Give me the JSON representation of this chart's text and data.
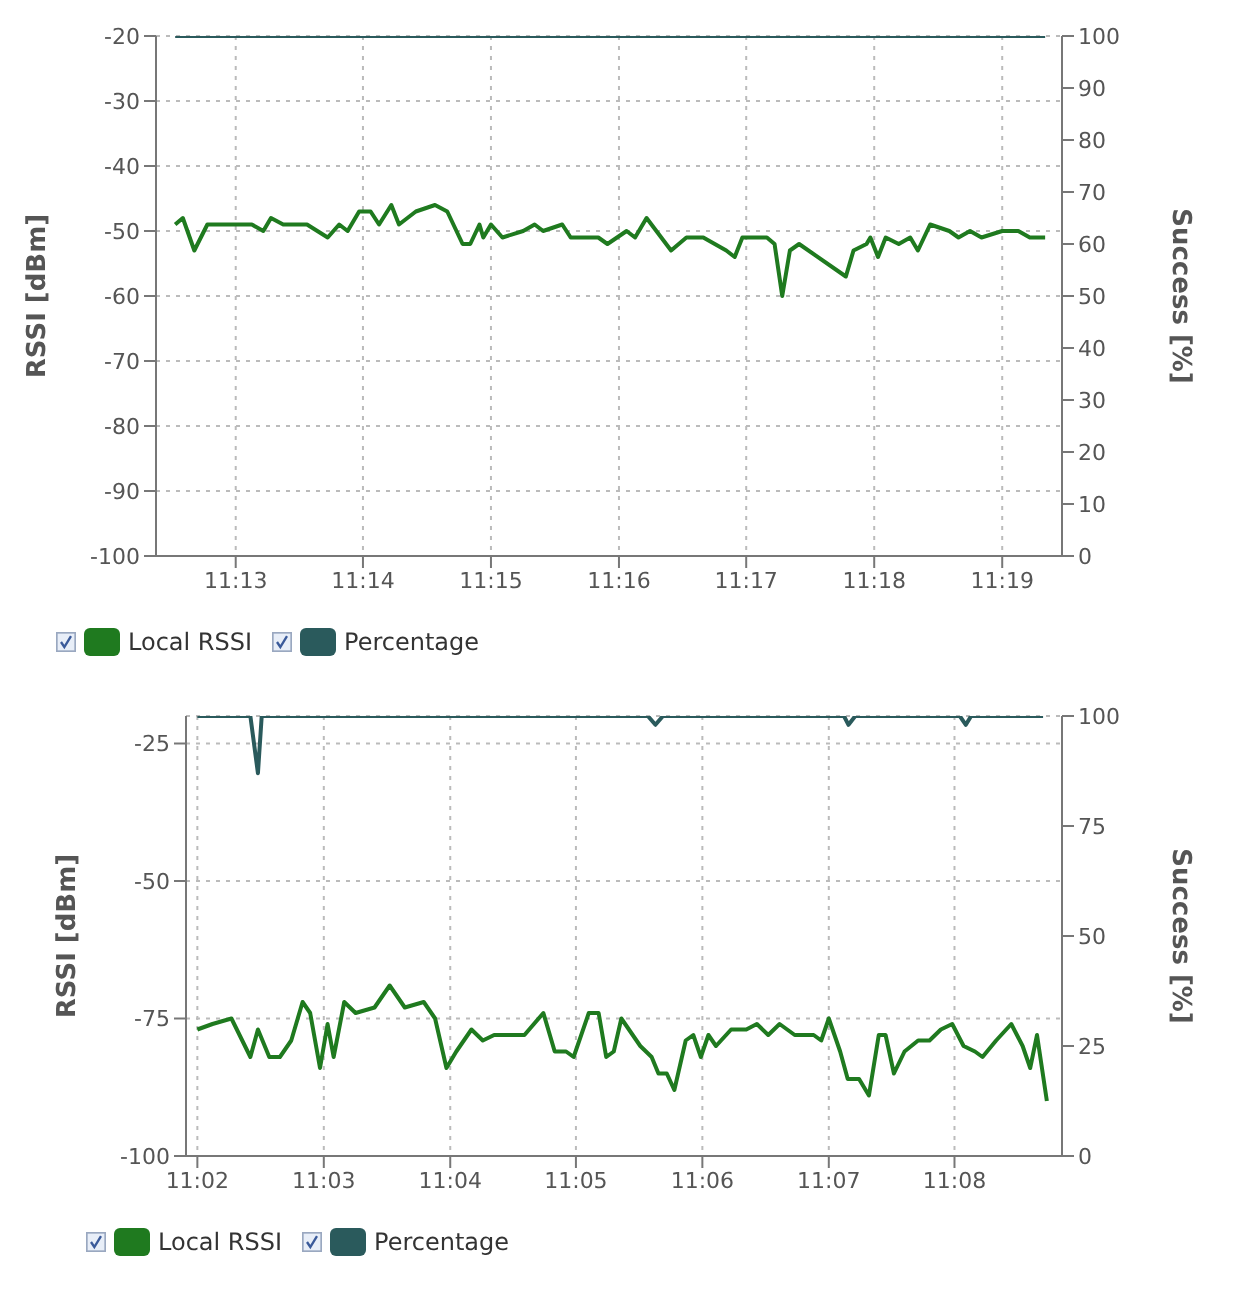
{
  "chart_data": [
    {
      "type": "line",
      "ylabel": "RSSI [dBm]",
      "y2label": "Success [%]",
      "xlim": [
        11.2063,
        11.3245
      ],
      "xticks": [
        {
          "value": 11.2167,
          "label": "11:13"
        },
        {
          "value": 11.2333,
          "label": "11:14"
        },
        {
          "value": 11.25,
          "label": "11:15"
        },
        {
          "value": 11.2667,
          "label": "11:16"
        },
        {
          "value": 11.2833,
          "label": "11:17"
        },
        {
          "value": 11.3,
          "label": "11:18"
        },
        {
          "value": 11.3167,
          "label": "11:19"
        }
      ],
      "ylim": [
        -100,
        -20
      ],
      "yticks": [
        -100,
        -90,
        -80,
        -70,
        -60,
        -50,
        -40,
        -30,
        -20
      ],
      "y2lim": [
        0,
        100
      ],
      "y2ticks": [
        0,
        10,
        20,
        30,
        40,
        50,
        60,
        70,
        80,
        90,
        100
      ],
      "grid": true,
      "legend": "bottom left",
      "line_style": "solid",
      "marker": "none",
      "series": [
        {
          "name": "Local RSSI",
          "color": "#1f7a1f",
          "x": [
            11.2088,
            11.2098,
            11.2113,
            11.213,
            11.2188,
            11.2203,
            11.2213,
            11.2229,
            11.226,
            11.2287,
            11.2302,
            11.2313,
            11.2328,
            11.2343,
            11.2354,
            11.237,
            11.238,
            11.2402,
            11.2427,
            11.2443,
            11.2463,
            11.2473,
            11.2485,
            11.249,
            11.25,
            11.2515,
            11.2542,
            11.2557,
            11.2568,
            11.2593,
            11.2604,
            11.264,
            11.2652,
            11.2677,
            11.2688,
            11.2703,
            11.2735,
            11.2755,
            11.2777,
            11.2807,
            11.2818,
            11.2828,
            11.286,
            11.287,
            11.288,
            11.289,
            11.2902,
            11.2963,
            11.2973,
            11.299,
            11.2995,
            11.3005,
            11.3015,
            11.3032,
            11.3047,
            11.3057,
            11.3073,
            11.3098,
            11.311,
            11.3125,
            11.314,
            11.3167,
            11.3188,
            11.3203,
            11.3223
          ],
          "values": [
            -49,
            -48,
            -53,
            -49,
            -49,
            -50,
            -48,
            -49,
            -49,
            -51,
            -49,
            -50,
            -47,
            -47,
            -49,
            -46,
            -49,
            -47,
            -46,
            -47,
            -52,
            -52,
            -49,
            -51,
            -49,
            -51,
            -50,
            -49,
            -50,
            -49,
            -51,
            -51,
            -52,
            -50,
            -51,
            -48,
            -53,
            -51,
            -51,
            -53,
            -54,
            -51,
            -51,
            -52,
            -60,
            -53,
            -52,
            -57,
            -53,
            -52,
            -51,
            -54,
            -51,
            -52,
            -51,
            -53,
            -49,
            -50,
            -51,
            -50,
            -51,
            -50,
            -50,
            -51,
            -51
          ]
        },
        {
          "name": "Percentage",
          "color": "#2a5a5c",
          "axis": "y2",
          "x": [
            11.2088,
            11.3223
          ],
          "values": [
            100,
            100
          ]
        }
      ]
    },
    {
      "type": "line",
      "ylabel": "RSSI [dBm]",
      "y2label": "Success [%]",
      "xlim": [
        11.0318,
        11.1475
      ],
      "xticks": [
        {
          "value": 11.0333,
          "label": "11:02"
        },
        {
          "value": 11.05,
          "label": "11:03"
        },
        {
          "value": 11.0667,
          "label": "11:04"
        },
        {
          "value": 11.0833,
          "label": "11:05"
        },
        {
          "value": 11.1,
          "label": "11:06"
        },
        {
          "value": 11.1167,
          "label": "11:07"
        },
        {
          "value": 11.1333,
          "label": "11:08"
        }
      ],
      "ylim": [
        -100,
        -20
      ],
      "yticks": [
        -100,
        -75,
        -50,
        -25
      ],
      "y2lim": [
        0,
        100
      ],
      "y2ticks": [
        0,
        25,
        50,
        75,
        100
      ],
      "grid": true,
      "legend": "bottom left",
      "line_style": "solid",
      "marker": "none",
      "series": [
        {
          "name": "Local RSSI",
          "color": "#1f7a1f",
          "x": [
            11.0333,
            11.0353,
            11.0378,
            11.0403,
            11.0413,
            11.0428,
            11.0442,
            11.0457,
            11.0472,
            11.0482,
            11.0495,
            11.0505,
            11.0513,
            11.0527,
            11.0542,
            11.0567,
            11.0587,
            11.0607,
            11.0632,
            11.0647,
            11.0662,
            11.0675,
            11.0695,
            11.071,
            11.0725,
            11.0765,
            11.079,
            11.0805,
            11.082,
            11.083,
            11.085,
            11.0863,
            11.0873,
            11.0883,
            11.0893,
            11.0918,
            11.0933,
            11.0942,
            11.0953,
            11.0963,
            11.0978,
            11.0988,
            11.0998,
            11.1008,
            11.1018,
            11.1038,
            11.1058,
            11.1072,
            11.1087,
            11.1102,
            11.1122,
            11.1147,
            11.1157,
            11.1167,
            11.1182,
            11.1192,
            11.1207,
            11.122,
            11.1233,
            11.1242,
            11.1253,
            11.1267,
            11.1285,
            11.13,
            11.1315,
            11.133,
            11.1345,
            11.136,
            11.137,
            11.1388,
            11.1408,
            11.1423,
            11.1433,
            11.1442,
            11.1455
          ],
          "values": [
            -77,
            -76,
            -75,
            -82,
            -77,
            -82,
            -82,
            -79,
            -72,
            -74,
            -84,
            -76,
            -82,
            -72,
            -74,
            -73,
            -69,
            -73,
            -72,
            -75,
            -84,
            -81,
            -77,
            -79,
            -78,
            -78,
            -74,
            -81,
            -81,
            -82,
            -74,
            -74,
            -82,
            -81,
            -75,
            -80,
            -82,
            -85,
            -85,
            -88,
            -79,
            -78,
            -82,
            -78,
            -80,
            -77,
            -77,
            -76,
            -78,
            -76,
            -78,
            -78,
            -79,
            -75,
            -81,
            -86,
            -86,
            -89,
            -78,
            -78,
            -85,
            -81,
            -79,
            -79,
            -77,
            -76,
            -80,
            -81,
            -82,
            -79,
            -76,
            -80,
            -84,
            -78,
            -90
          ]
        },
        {
          "name": "Percentage",
          "color": "#2a5a5c",
          "axis": "y2",
          "x": [
            11.0333,
            11.0403,
            11.0413,
            11.0418,
            11.0928,
            11.0938,
            11.0948,
            11.1187,
            11.1193,
            11.1202,
            11.134,
            11.1348,
            11.1355,
            11.145
          ],
          "values": [
            100,
            100,
            87,
            100,
            100,
            98,
            100,
            100,
            98,
            100,
            100,
            98,
            100,
            100
          ]
        }
      ]
    }
  ]
}
